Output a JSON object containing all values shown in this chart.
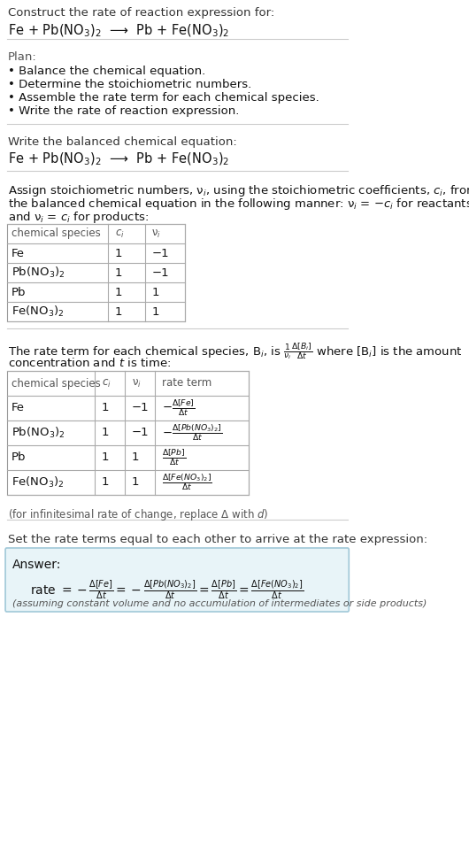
{
  "bg_color": "#ffffff",
  "text_color": "#000000",
  "gray_color": "#555555",
  "answer_bg": "#e8f4f8",
  "answer_border": "#a0c8d8",
  "title": "Construct the rate of reaction expression for:",
  "equation_main": "Fe + Pb(NO$_3$)$_2$  ⟶  Pb + Fe(NO$_3$)$_2$",
  "plan_title": "Plan:",
  "plan_items": [
    "• Balance the chemical equation.",
    "• Determine the stoichiometric numbers.",
    "• Assemble the rate term for each chemical species.",
    "• Write the rate of reaction expression."
  ],
  "balanced_label": "Write the balanced chemical equation:",
  "balanced_eq": "Fe + Pb(NO$_3$)$_2$  ⟶  Pb + Fe(NO$_3$)$_2$",
  "assign_text1": "Assign stoichiometric numbers, ν$_i$, using the stoichiometric coefficients, $c_i$, from",
  "assign_text2": "the balanced chemical equation in the following manner: ν$_i$ = −$c_i$ for reactants",
  "assign_text3": "and ν$_i$ = $c_i$ for products:",
  "table1_headers": [
    "chemical species",
    "$c_i$",
    "ν$_i$"
  ],
  "table1_rows": [
    [
      "Fe",
      "1",
      "−1"
    ],
    [
      "Pb(NO$_3$)$_2$",
      "1",
      "−1"
    ],
    [
      "Pb",
      "1",
      "1"
    ],
    [
      "Fe(NO$_3$)$_2$",
      "1",
      "1"
    ]
  ],
  "rate_text1": "The rate term for each chemical species, B$_i$, is $\\frac{1}{\\nu_i}\\frac{\\Delta[B_i]}{\\Delta t}$ where [B$_i$] is the amount",
  "rate_text2": "concentration and $t$ is time:",
  "table2_headers": [
    "chemical species",
    "$c_i$",
    "ν$_i$",
    "rate term"
  ],
  "table2_rows": [
    [
      "Fe",
      "1",
      "−1",
      "$-\\frac{\\Delta[Fe]}{\\Delta t}$"
    ],
    [
      "Pb(NO$_3$)$_2$",
      "1",
      "−1",
      "$-\\frac{\\Delta[Pb(NO_3)_2]}{\\Delta t}$"
    ],
    [
      "Pb",
      "1",
      "1",
      "$\\frac{\\Delta[Pb]}{\\Delta t}$"
    ],
    [
      "Fe(NO$_3$)$_2$",
      "1",
      "1",
      "$\\frac{\\Delta[Fe(NO_3)_2]}{\\Delta t}$"
    ]
  ],
  "infinitesimal_note": "(for infinitesimal rate of change, replace Δ with $d$)",
  "set_text": "Set the rate terms equal to each other to arrive at the rate expression:",
  "answer_label": "Answer:",
  "answer_eq": "rate $= -\\frac{\\Delta[Fe]}{\\Delta t} = -\\frac{\\Delta[Pb(NO_3)_2]}{\\Delta t} = \\frac{\\Delta[Pb]}{\\Delta t} = \\frac{\\Delta[Fe(NO_3)_2]}{\\Delta t}$",
  "answer_note": "(assuming constant volume and no accumulation of intermediates or side products)"
}
